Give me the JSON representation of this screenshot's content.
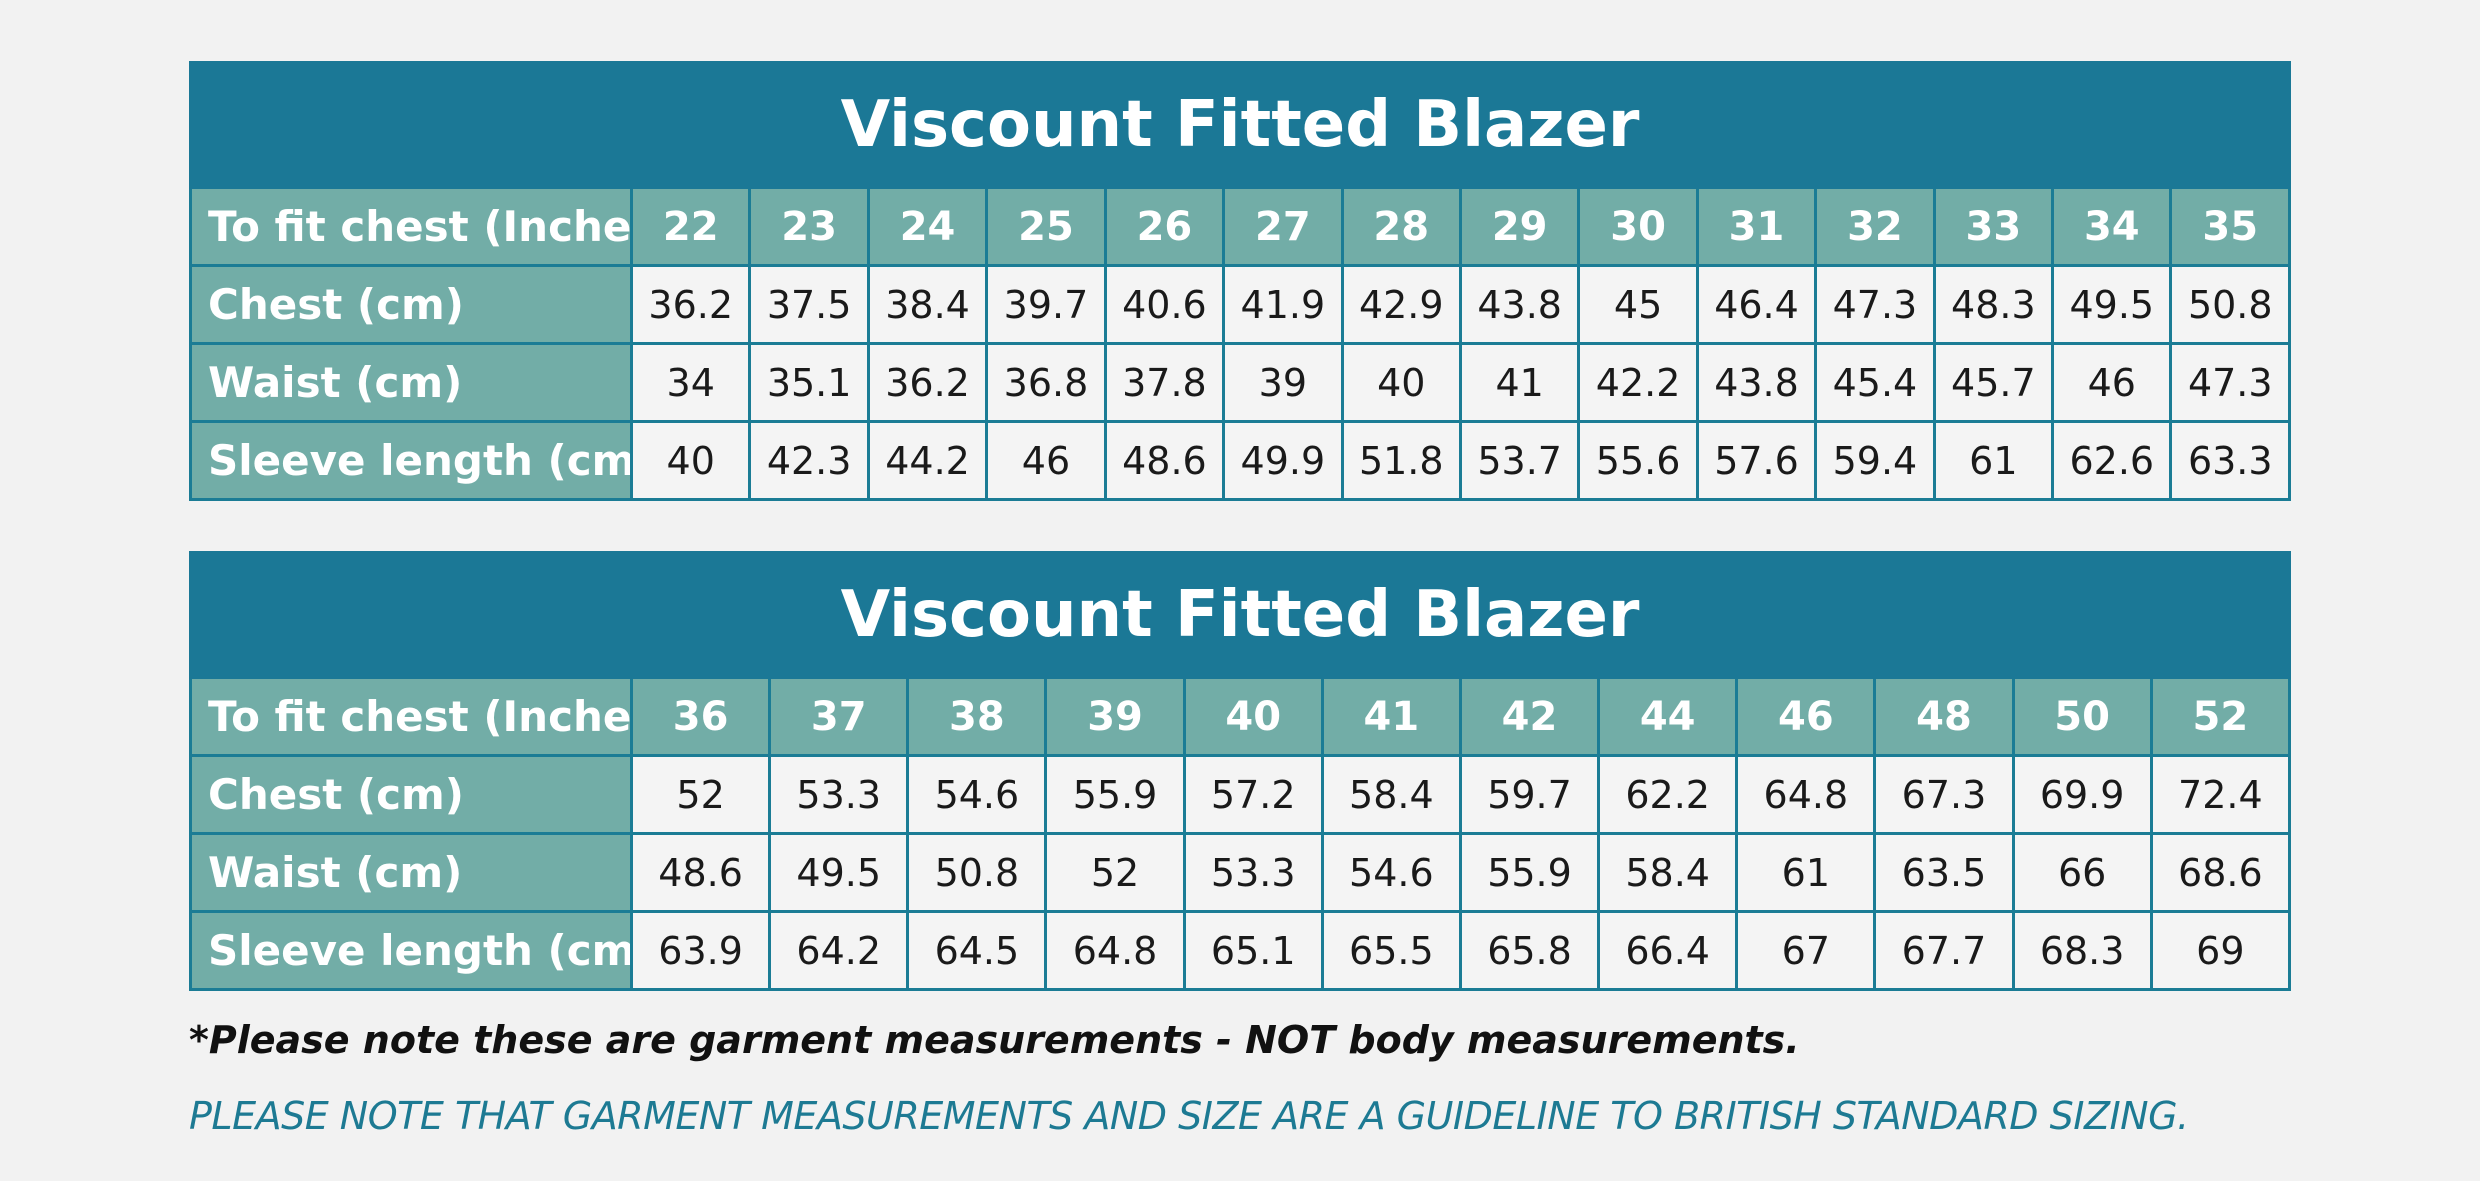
{
  "tables": [
    {
      "title": "Viscount Fitted Blazer",
      "header_label": "To fit chest (Inches)",
      "sizes": [
        "22",
        "23",
        "24",
        "25",
        "26",
        "27",
        "28",
        "29",
        "30",
        "31",
        "32",
        "33",
        "34",
        "35"
      ],
      "rows": [
        {
          "label": "Chest (cm)",
          "values": [
            "36.2",
            "37.5",
            "38.4",
            "39.7",
            "40.6",
            "41.9",
            "42.9",
            "43.8",
            "45",
            "46.4",
            "47.3",
            "48.3",
            "49.5",
            "50.8"
          ]
        },
        {
          "label": "Waist (cm)",
          "values": [
            "34",
            "35.1",
            "36.2",
            "36.8",
            "37.8",
            "39",
            "40",
            "41",
            "42.2",
            "43.8",
            "45.4",
            "45.7",
            "46",
            "47.3"
          ]
        },
        {
          "label": "Sleeve length (cm)",
          "values": [
            "40",
            "42.3",
            "44.2",
            "46",
            "48.6",
            "49.9",
            "51.8",
            "53.7",
            "55.6",
            "57.6",
            "59.4",
            "61",
            "62.6",
            "63.3"
          ]
        }
      ]
    },
    {
      "title": "Viscount Fitted Blazer",
      "header_label": "To fit chest (Inches)",
      "sizes": [
        "36",
        "37",
        "38",
        "39",
        "40",
        "41",
        "42",
        "44",
        "46",
        "48",
        "50",
        "52"
      ],
      "rows": [
        {
          "label": "Chest (cm)",
          "values": [
            "52",
            "53.3",
            "54.6",
            "55.9",
            "57.2",
            "58.4",
            "59.7",
            "62.2",
            "64.8",
            "67.3",
            "69.9",
            "72.4"
          ]
        },
        {
          "label": "Waist (cm)",
          "values": [
            "48.6",
            "49.5",
            "50.8",
            "52",
            "53.3",
            "54.6",
            "55.9",
            "58.4",
            "61",
            "63.5",
            "66",
            "68.6"
          ]
        },
        {
          "label": "Sleeve length (cm)",
          "values": [
            "63.9",
            "64.2",
            "64.5",
            "64.8",
            "65.1",
            "65.5",
            "65.8",
            "66.4",
            "67",
            "67.7",
            "68.3",
            "69"
          ]
        }
      ]
    }
  ],
  "notes": {
    "garment_note": "*Please note these are garment measurements - NOT body measurements.",
    "guideline_note": "PLEASE NOTE THAT GARMENT MEASUREMENTS AND SIZE ARE A GUIDELINE TO BRITISH STANDARD SIZING."
  },
  "colors": {
    "title_bg": "#1b7896",
    "header_bg": "#72ada7",
    "cell_bg": "#f4f4f4",
    "border": "#1b7c95",
    "guideline_text": "#1d7a93"
  }
}
